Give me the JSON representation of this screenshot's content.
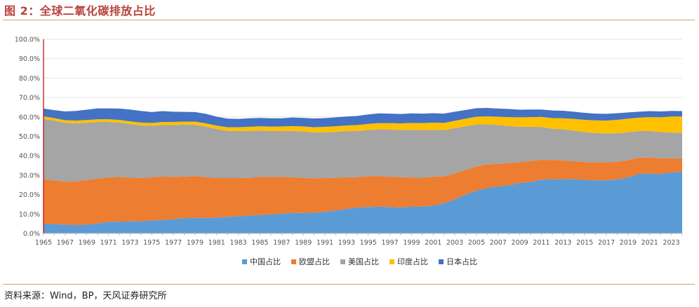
{
  "header": {
    "title": "图 2：全球二氧化碳排放占比"
  },
  "footer": {
    "source": "资料来源：Wind，BP，天风证券研究所"
  },
  "chart_data": {
    "type": "area",
    "stacked": true,
    "title": "图 2：全球二氧化碳排放占比",
    "xlabel": "",
    "ylabel": "",
    "ylim": [
      0,
      100
    ],
    "y_ticks": [
      "0.0%",
      "10.0%",
      "20.0%",
      "30.0%",
      "40.0%",
      "50.0%",
      "60.0%",
      "70.0%",
      "80.0%",
      "90.0%",
      "100.0%"
    ],
    "x_ticks": [
      "1965",
      "1967",
      "1969",
      "1971",
      "1973",
      "1975",
      "1977",
      "1979",
      "1981",
      "1983",
      "1985",
      "1987",
      "1989",
      "1991",
      "1993",
      "1995",
      "1997",
      "1999",
      "2001",
      "2003",
      "2005",
      "2007",
      "2009",
      "2011",
      "2013",
      "2015",
      "2017",
      "2019",
      "2021",
      "2023"
    ],
    "legend_position": "bottom",
    "x": [
      1965,
      1966,
      1967,
      1968,
      1969,
      1970,
      1971,
      1972,
      1973,
      1974,
      1975,
      1976,
      1977,
      1978,
      1979,
      1980,
      1981,
      1982,
      1983,
      1984,
      1985,
      1986,
      1987,
      1988,
      1989,
      1990,
      1991,
      1992,
      1993,
      1994,
      1995,
      1996,
      1997,
      1998,
      1999,
      2000,
      2001,
      2002,
      2003,
      2004,
      2005,
      2006,
      2007,
      2008,
      2009,
      2010,
      2011,
      2012,
      2013,
      2014,
      2015,
      2016,
      2017,
      2018,
      2019,
      2020,
      2021,
      2022,
      2023,
      2024
    ],
    "series": [
      {
        "name": "中国占比",
        "color": "#5b9bd5",
        "values": [
          5.0,
          4.8,
          4.5,
          4.3,
          4.6,
          5.2,
          5.9,
          6.1,
          6.2,
          6.3,
          6.7,
          6.9,
          7.3,
          7.9,
          8.0,
          8.0,
          8.1,
          8.5,
          8.8,
          9.2,
          9.5,
          9.8,
          10.2,
          10.5,
          10.6,
          10.7,
          11.1,
          11.8,
          12.6,
          13.3,
          13.6,
          13.8,
          13.6,
          13.4,
          13.7,
          13.8,
          14.4,
          15.5,
          17.6,
          20.0,
          22.0,
          23.4,
          24.2,
          24.8,
          26.0,
          26.5,
          27.7,
          27.9,
          28.0,
          27.9,
          27.6,
          27.3,
          27.4,
          27.8,
          28.9,
          30.7,
          30.8,
          30.6,
          31.4,
          31.8
        ]
      },
      {
        "name": "欧盟占比",
        "color": "#ed7d31",
        "values": [
          23.0,
          22.5,
          22.0,
          22.4,
          22.9,
          23.0,
          23.0,
          23.0,
          22.5,
          22.3,
          22.2,
          22.4,
          21.8,
          21.4,
          21.5,
          21.0,
          20.4,
          20.0,
          19.7,
          19.4,
          19.6,
          19.3,
          18.9,
          18.4,
          18.0,
          17.7,
          17.4,
          16.8,
          16.3,
          15.7,
          15.8,
          15.8,
          15.6,
          15.6,
          15.1,
          14.8,
          14.8,
          13.9,
          13.3,
          12.7,
          12.5,
          12.2,
          11.6,
          11.4,
          10.7,
          10.8,
          10.2,
          9.9,
          9.6,
          9.3,
          9.2,
          9.3,
          9.3,
          9.1,
          8.8,
          8.4,
          8.3,
          8.1,
          7.2,
          6.9
        ]
      },
      {
        "name": "美国占比",
        "color": "#a5a5a5",
        "values": [
          31.0,
          30.8,
          30.5,
          30.0,
          29.5,
          29.2,
          28.5,
          28.0,
          27.6,
          27.0,
          26.5,
          26.5,
          26.7,
          26.7,
          26.4,
          26.0,
          25.2,
          24.3,
          24.2,
          24.2,
          23.9,
          23.6,
          23.6,
          23.9,
          23.9,
          23.6,
          23.6,
          23.7,
          23.8,
          23.8,
          23.9,
          24.0,
          24.3,
          24.3,
          24.6,
          24.6,
          24.2,
          23.8,
          23.3,
          22.5,
          21.6,
          20.6,
          20.0,
          19.1,
          18.2,
          17.6,
          16.9,
          16.1,
          16.0,
          15.8,
          15.4,
          15.1,
          14.8,
          14.7,
          14.4,
          13.6,
          13.6,
          13.5,
          13.3,
          13.1
        ]
      },
      {
        "name": "印度占比",
        "color": "#ffc000",
        "values": [
          1.3,
          1.3,
          1.3,
          1.4,
          1.4,
          1.4,
          1.4,
          1.4,
          1.4,
          1.5,
          1.5,
          1.6,
          1.6,
          1.6,
          1.7,
          1.7,
          1.8,
          1.9,
          2.0,
          2.1,
          2.2,
          2.3,
          2.4,
          2.5,
          2.6,
          2.7,
          2.8,
          2.9,
          2.9,
          3.0,
          3.1,
          3.2,
          3.3,
          3.4,
          3.5,
          3.6,
          3.7,
          3.7,
          3.8,
          3.9,
          4.0,
          4.1,
          4.3,
          4.6,
          4.9,
          5.0,
          5.2,
          5.5,
          5.7,
          6.0,
          6.3,
          6.5,
          6.6,
          6.9,
          7.0,
          6.9,
          7.2,
          7.6,
          8.3,
          8.4
        ]
      },
      {
        "name": "日本占比",
        "color": "#4472c4",
        "values": [
          4.0,
          4.1,
          4.5,
          5.0,
          5.3,
          5.6,
          5.6,
          5.8,
          6.1,
          6.0,
          5.6,
          5.6,
          5.3,
          5.0,
          4.9,
          4.9,
          4.6,
          4.4,
          4.3,
          4.4,
          4.3,
          4.3,
          4.2,
          4.4,
          4.4,
          4.5,
          4.5,
          4.6,
          4.6,
          4.7,
          4.9,
          5.0,
          4.9,
          4.8,
          4.9,
          4.9,
          4.8,
          4.8,
          4.7,
          4.5,
          4.4,
          4.3,
          4.2,
          4.2,
          3.9,
          3.9,
          3.8,
          3.9,
          3.9,
          3.7,
          3.6,
          3.5,
          3.5,
          3.4,
          3.2,
          3.1,
          3.1,
          3.0,
          2.9,
          2.8
        ]
      }
    ]
  }
}
